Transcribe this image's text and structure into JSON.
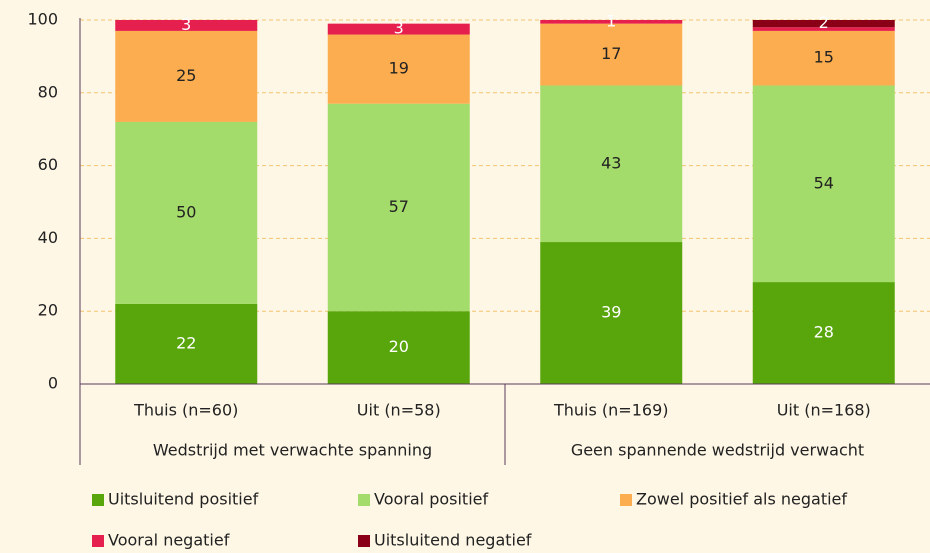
{
  "chart_data": {
    "type": "stacked_bar",
    "categories": [
      "Thuis (n=60)",
      "Uit (n=58)",
      "Thuis (n=169)",
      "Uit (n=168)"
    ],
    "groups": [
      {
        "name": "Wedstrijd met verwachte spanning",
        "categories": [
          0,
          1
        ]
      },
      {
        "name": "Geen spannende wedstrijd verwacht",
        "categories": [
          2,
          3
        ]
      }
    ],
    "series": [
      {
        "name": "Uitsluitend positief",
        "color": "#58a60c",
        "label_color": "#ffffff",
        "values": [
          22,
          20,
          39,
          28
        ]
      },
      {
        "name": "Vooral positief",
        "color": "#a4dc6b",
        "label_color": "#222222",
        "values": [
          50,
          57,
          43,
          54
        ]
      },
      {
        "name": "Zowel positief als negatief",
        "color": "#fbad4f",
        "label_color": "#222222",
        "values": [
          25,
          19,
          17,
          15
        ]
      },
      {
        "name": "Vooral negatief",
        "color": "#e6204e",
        "label_color": "#ffffff",
        "values": [
          3,
          3,
          1,
          1
        ],
        "value_labels": [
          "3",
          "3",
          "1",
          null
        ]
      },
      {
        "name": "Uitsluitend negatief",
        "color": "#8a0016",
        "label_color": "#ffffff",
        "values": [
          0,
          0,
          0,
          2
        ],
        "value_labels": [
          null,
          null,
          null,
          "2"
        ]
      }
    ],
    "ylim": [
      0,
      100
    ],
    "yticks": [
      0,
      20,
      40,
      60,
      80,
      100
    ],
    "grid": true
  }
}
